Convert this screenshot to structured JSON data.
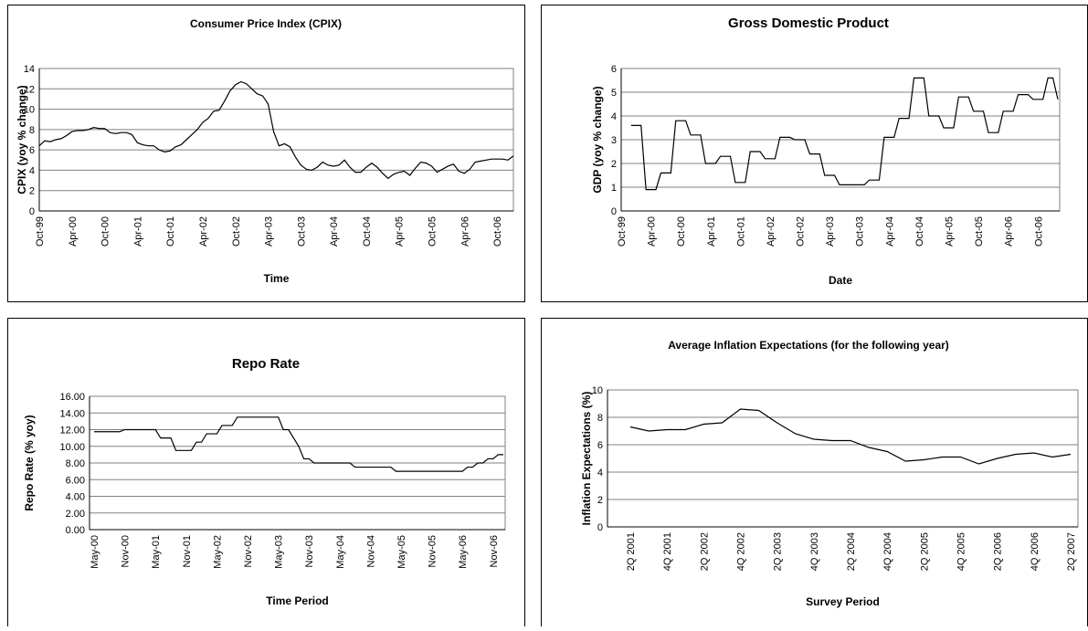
{
  "chart_data": [
    {
      "type": "line",
      "title": "Consumer Price Index (CPIX)",
      "ylabel": "CPIX (yoy % change)",
      "xlabel": "Time",
      "color": "#000000",
      "grid": true,
      "ylim": [
        0,
        14
      ],
      "yticks": [
        0,
        2,
        4,
        6,
        8,
        10,
        12,
        14
      ],
      "categories": [
        "Oct-99",
        null,
        null,
        null,
        null,
        null,
        "Apr-00",
        null,
        null,
        null,
        null,
        null,
        "Oct-00",
        null,
        null,
        null,
        null,
        null,
        "Apr-01",
        null,
        null,
        null,
        null,
        null,
        "Oct-01",
        null,
        null,
        null,
        null,
        null,
        "Apr-02",
        null,
        null,
        null,
        null,
        null,
        "Oct-02",
        null,
        null,
        null,
        null,
        null,
        "Apr-03",
        null,
        null,
        null,
        null,
        null,
        "Oct-03",
        null,
        null,
        null,
        null,
        null,
        "Apr-04",
        null,
        null,
        null,
        null,
        null,
        "Oct-04",
        null,
        null,
        null,
        null,
        null,
        "Apr-05",
        null,
        null,
        null,
        null,
        null,
        "Oct-05",
        null,
        null,
        null,
        null,
        null,
        "Apr-06",
        null,
        null,
        null,
        null,
        null,
        "Oct-06",
        null,
        null,
        null
      ],
      "values": [
        6.4,
        6.9,
        6.8,
        7.0,
        7.1,
        7.4,
        7.8,
        7.9,
        7.9,
        8.0,
        8.2,
        8.1,
        8.1,
        7.7,
        7.6,
        7.7,
        7.7,
        7.5,
        6.7,
        6.5,
        6.4,
        6.4,
        6.0,
        5.8,
        5.9,
        6.3,
        6.5,
        7.0,
        7.5,
        8.0,
        8.7,
        9.1,
        9.8,
        9.9,
        10.8,
        11.8,
        12.4,
        12.7,
        12.5,
        12.0,
        11.5,
        11.3,
        10.5,
        7.8,
        6.4,
        6.6,
        6.3,
        5.3,
        4.5,
        4.1,
        4.0,
        4.3,
        4.8,
        4.5,
        4.4,
        4.5,
        5.0,
        4.3,
        3.8,
        3.8,
        4.3,
        4.7,
        4.3,
        3.7,
        3.2,
        3.6,
        3.8,
        3.9,
        3.5,
        4.2,
        4.8,
        4.7,
        4.4,
        3.8,
        4.1,
        4.4,
        4.6,
        3.9,
        3.7,
        4.1,
        4.8,
        4.9,
        5.0,
        5.1,
        5.1,
        5.1,
        5.0,
        5.4
      ]
    },
    {
      "type": "line",
      "title": "Gross Domestic Product",
      "ylabel": "GDP (yoy % change)",
      "xlabel": "Date",
      "color": "#000000",
      "grid": true,
      "ylim": [
        0,
        6
      ],
      "yticks": [
        0,
        1,
        2,
        3,
        4,
        5,
        6
      ],
      "categories": [
        "Oct-99",
        null,
        null,
        null,
        null,
        null,
        "Apr-00",
        null,
        null,
        null,
        null,
        null,
        "Oct-00",
        null,
        null,
        null,
        null,
        null,
        "Apr-01",
        null,
        null,
        null,
        null,
        null,
        "Oct-01",
        null,
        null,
        null,
        null,
        null,
        "Apr-02",
        null,
        null,
        null,
        null,
        null,
        "Oct-02",
        null,
        null,
        null,
        null,
        null,
        "Apr-03",
        null,
        null,
        null,
        null,
        null,
        "Oct-03",
        null,
        null,
        null,
        null,
        null,
        "Apr-04",
        null,
        null,
        null,
        null,
        null,
        "Oct-04",
        null,
        null,
        null,
        null,
        null,
        "Apr-05",
        null,
        null,
        null,
        null,
        null,
        "Oct-05",
        null,
        null,
        null,
        null,
        null,
        "Apr-06",
        null,
        null,
        null,
        null,
        null,
        "Oct-06",
        null,
        null,
        null,
        null
      ],
      "values": [
        null,
        null,
        3.6,
        3.6,
        3.6,
        0.9,
        0.9,
        0.9,
        1.6,
        1.6,
        1.6,
        3.8,
        3.8,
        3.8,
        3.2,
        3.2,
        3.2,
        2.0,
        2.0,
        2.0,
        2.3,
        2.3,
        2.3,
        1.2,
        1.2,
        1.2,
        2.5,
        2.5,
        2.5,
        2.2,
        2.2,
        2.2,
        3.1,
        3.1,
        3.1,
        3.0,
        3.0,
        3.0,
        2.4,
        2.4,
        2.4,
        1.5,
        1.5,
        1.5,
        1.1,
        1.1,
        1.1,
        1.1,
        1.1,
        1.1,
        1.3,
        1.3,
        1.3,
        3.1,
        3.1,
        3.1,
        3.9,
        3.9,
        3.9,
        5.6,
        5.6,
        5.6,
        4.0,
        4.0,
        4.0,
        3.5,
        3.5,
        3.5,
        4.8,
        4.8,
        4.8,
        4.2,
        4.2,
        4.2,
        3.3,
        3.3,
        3.3,
        4.2,
        4.2,
        4.2,
        4.9,
        4.9,
        4.9,
        4.7,
        4.7,
        4.7,
        5.6,
        5.6,
        4.7
      ]
    },
    {
      "type": "line",
      "title": "Repo Rate",
      "ylabel": "Repo Rate (% yoy)",
      "xlabel": "Time Period",
      "color": "#000000",
      "grid": true,
      "ylim": [
        0,
        16
      ],
      "yticks": [
        {
          "value": 0,
          "label": "0.00"
        },
        {
          "value": 2,
          "label": "2.00"
        },
        {
          "value": 4,
          "label": "4.00"
        },
        {
          "value": 6,
          "label": "6.00"
        },
        {
          "value": 8,
          "label": "8.00"
        },
        {
          "value": 10,
          "label": "10.00"
        },
        {
          "value": 12,
          "label": "12.00"
        },
        {
          "value": 14,
          "label": "14.00"
        },
        {
          "value": 16,
          "label": "16.00"
        }
      ],
      "categories": [
        "May-00",
        null,
        null,
        null,
        null,
        null,
        "Nov-00",
        null,
        null,
        null,
        null,
        null,
        "May-01",
        null,
        null,
        null,
        null,
        null,
        "Nov-01",
        null,
        null,
        null,
        null,
        null,
        "May-02",
        null,
        null,
        null,
        null,
        null,
        "Nov-02",
        null,
        null,
        null,
        null,
        null,
        "May-03",
        null,
        null,
        null,
        null,
        null,
        "Nov-03",
        null,
        null,
        null,
        null,
        null,
        "May-04",
        null,
        null,
        null,
        null,
        null,
        "Nov-04",
        null,
        null,
        null,
        null,
        null,
        "May-05",
        null,
        null,
        null,
        null,
        null,
        "Nov-05",
        null,
        null,
        null,
        null,
        null,
        "May-06",
        null,
        null,
        null,
        null,
        null,
        "Nov-06",
        null,
        null
      ],
      "values": [
        11.75,
        11.75,
        11.75,
        11.75,
        11.75,
        11.75,
        12,
        12,
        12,
        12,
        12,
        12,
        12,
        11,
        11,
        11,
        9.5,
        9.5,
        9.5,
        9.5,
        10.5,
        10.5,
        11.5,
        11.5,
        11.5,
        12.5,
        12.5,
        12.5,
        13.5,
        13.5,
        13.5,
        13.5,
        13.5,
        13.5,
        13.5,
        13.5,
        13.5,
        12,
        12,
        11,
        10,
        8.5,
        8.5,
        8,
        8,
        8,
        8,
        8,
        8,
        8,
        8,
        7.5,
        7.5,
        7.5,
        7.5,
        7.5,
        7.5,
        7.5,
        7.5,
        7,
        7,
        7,
        7,
        7,
        7,
        7,
        7,
        7,
        7,
        7,
        7,
        7,
        7,
        7.5,
        7.5,
        8,
        8,
        8.5,
        8.5,
        9,
        9
      ]
    },
    {
      "type": "line",
      "title": "Average Inflation Expectations (for the following year)",
      "ylabel": "Inflation Expectations (%)",
      "xlabel": "Survey Period",
      "color": "#000000",
      "grid": true,
      "ylim": [
        0,
        10
      ],
      "yticks": [
        0,
        2,
        4,
        6,
        8,
        10
      ],
      "categories": [
        "2Q 2001",
        null,
        "4Q 2001",
        null,
        "2Q 2002",
        null,
        "4Q 2002",
        null,
        "2Q 2003",
        null,
        "4Q 2003",
        null,
        "2Q 2004",
        null,
        "4Q 2004",
        null,
        "2Q 2005",
        null,
        "4Q 2005",
        null,
        "2Q 2006",
        null,
        "4Q 2006",
        null,
        "2Q 2007"
      ],
      "values": [
        7.3,
        7.0,
        7.1,
        7.1,
        7.5,
        7.6,
        8.6,
        8.5,
        7.6,
        6.8,
        6.4,
        6.3,
        6.3,
        5.8,
        5.5,
        4.8,
        4.9,
        5.1,
        5.1,
        4.6,
        5.0,
        5.3,
        5.4,
        5.1,
        5.3
      ]
    }
  ]
}
